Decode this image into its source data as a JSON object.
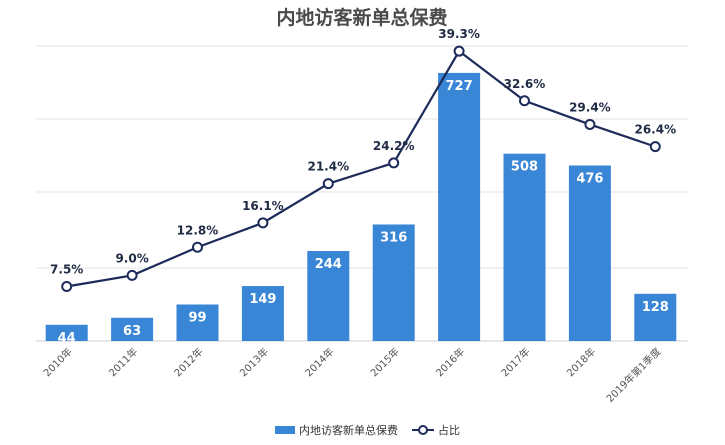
{
  "chart_data": {
    "type": "bar",
    "title": "内地访客新单总保费",
    "categories": [
      "2010年",
      "2011年",
      "2012年",
      "2013年",
      "2014年",
      "2015年",
      "2016年",
      "2017年",
      "2018年",
      "2019年第1季度"
    ],
    "series": [
      {
        "name": "内地访客新单总保费",
        "type": "bar",
        "axis": "left",
        "values": [
          44,
          63,
          99,
          149,
          244,
          316,
          727,
          508,
          476,
          128
        ],
        "labels": [
          "44",
          "63",
          "99",
          "149",
          "244",
          "316",
          "727",
          "508",
          "476",
          "128"
        ]
      },
      {
        "name": "占比",
        "type": "line",
        "axis": "right",
        "values": [
          7.5,
          9.0,
          12.8,
          16.1,
          21.4,
          24.2,
          39.3,
          32.6,
          29.4,
          26.4
        ],
        "labels": [
          "7.5%",
          "9.0%",
          "12.8%",
          "16.1%",
          "21.4%",
          "24.2%",
          "39.3%",
          "32.6%",
          "29.4%",
          "26.4%"
        ]
      }
    ],
    "ylim_left": [
      0,
      800
    ],
    "ylim_right": [
      0,
      45
    ],
    "grid": true,
    "legend_position": "bottom-center",
    "colors": {
      "bar": "#3a86d6",
      "line": "#1d2b5a"
    }
  }
}
